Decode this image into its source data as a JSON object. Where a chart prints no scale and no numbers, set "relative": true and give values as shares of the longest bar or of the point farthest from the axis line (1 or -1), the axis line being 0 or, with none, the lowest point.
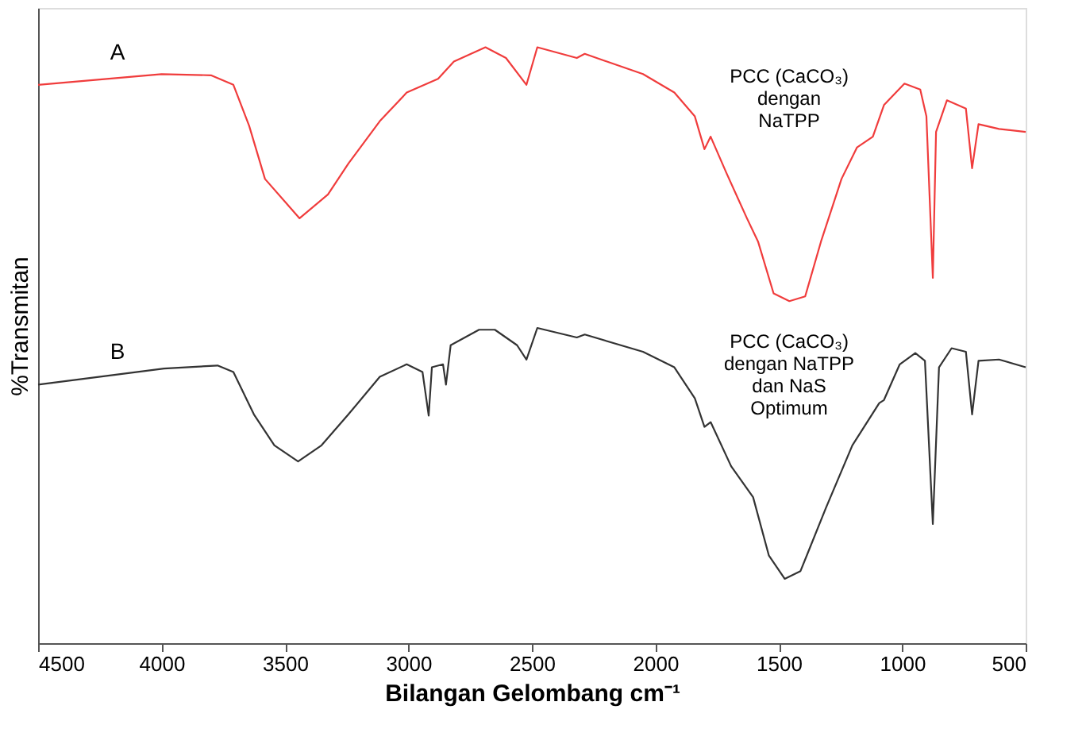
{
  "chart_data": {
    "type": "line",
    "xlabel": "Bilangan Gelombang cm⁻¹",
    "ylabel": "%Transmitan",
    "relative": true,
    "xlim": [
      4500,
      500
    ],
    "xticks": [
      4500,
      4000,
      3500,
      3000,
      2500,
      2000,
      1500,
      1000,
      500
    ],
    "series": [
      {
        "name": "A",
        "color": "#f03c3c",
        "x": [
          4500,
          4000,
          3800,
          3709,
          3645,
          3581,
          3441,
          3326,
          3243,
          3116,
          3007,
          2880,
          2816,
          2688,
          2605,
          2522,
          2478,
          2318,
          2286,
          2050,
          1923,
          1840,
          1801,
          1776,
          1712,
          1629,
          1584,
          1521,
          1457,
          1393,
          1329,
          1246,
          1183,
          1119,
          1074,
          991,
          927,
          902,
          876,
          863,
          819,
          742,
          717,
          691,
          608,
          500
        ],
        "values": [
          0.937,
          0.955,
          0.953,
          0.937,
          0.868,
          0.779,
          0.713,
          0.753,
          0.805,
          0.876,
          0.924,
          0.947,
          0.976,
          1.0,
          0.982,
          0.937,
          1.0,
          0.982,
          0.989,
          0.955,
          0.924,
          0.884,
          0.829,
          0.85,
          0.789,
          0.713,
          0.674,
          0.587,
          0.574,
          0.582,
          0.674,
          0.779,
          0.832,
          0.85,
          0.903,
          0.939,
          0.929,
          0.884,
          0.613,
          0.858,
          0.911,
          0.897,
          0.797,
          0.871,
          0.863,
          0.858
        ]
      },
      {
        "name": "B",
        "color": "#333333",
        "x": [
          4500,
          3990,
          3773,
          3709,
          3626,
          3543,
          3447,
          3352,
          3243,
          3116,
          3007,
          2943,
          2918,
          2905,
          2860,
          2848,
          2829,
          2714,
          2650,
          2560,
          2522,
          2478,
          2318,
          2286,
          2050,
          1923,
          1840,
          1801,
          1776,
          1693,
          1604,
          1540,
          1476,
          1412,
          1310,
          1202,
          1093,
          1074,
          1010,
          947,
          908,
          876,
          851,
          800,
          742,
          717,
          691,
          608,
          500
        ],
        "values": [
          0.434,
          0.461,
          0.466,
          0.455,
          0.384,
          0.332,
          0.305,
          0.332,
          0.384,
          0.447,
          0.468,
          0.455,
          0.382,
          0.463,
          0.468,
          0.434,
          0.5,
          0.526,
          0.526,
          0.5,
          0.476,
          0.529,
          0.513,
          0.518,
          0.489,
          0.463,
          0.411,
          0.363,
          0.371,
          0.297,
          0.245,
          0.147,
          0.108,
          0.121,
          0.226,
          0.332,
          0.403,
          0.408,
          0.468,
          0.487,
          0.474,
          0.2,
          0.463,
          0.495,
          0.489,
          0.384,
          0.474,
          0.476,
          0.463
        ]
      }
    ],
    "annotations": [
      "PCC (CaCO₃)\ndengan\nNaTPP",
      "PCC (CaCO₃)\ndengan NaTPP\ndan NaS\nOptimum"
    ]
  }
}
